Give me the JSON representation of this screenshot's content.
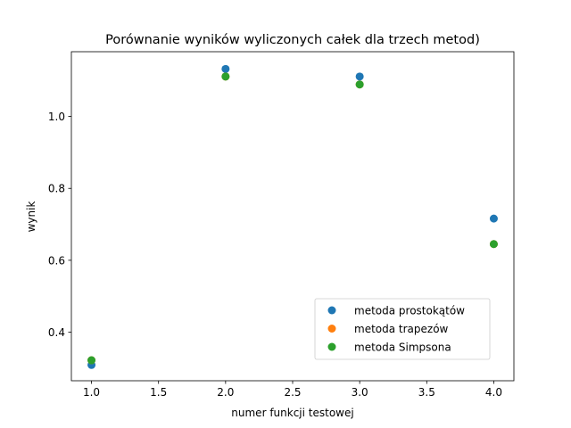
{
  "chart_data": {
    "type": "scatter",
    "title": "Porównanie wyników wyliczonych całek dla trzech metod)",
    "xlabel": "numer funkcji testowej",
    "ylabel": "wynik",
    "xlim": [
      0.85,
      4.15
    ],
    "ylim": [
      0.265,
      1.18
    ],
    "xticks": [
      1.0,
      1.5,
      2.0,
      2.5,
      3.0,
      3.5,
      4.0
    ],
    "xtick_labels": [
      "1.0",
      "1.5",
      "2.0",
      "2.5",
      "3.0",
      "3.5",
      "4.0"
    ],
    "yticks": [
      0.4,
      0.6,
      0.8,
      1.0
    ],
    "ytick_labels": [
      "0.4",
      "0.6",
      "0.8",
      "1.0"
    ],
    "grid": false,
    "legend_position": "lower-right",
    "series": [
      {
        "name": "metoda prostokątów",
        "color": "#1f77b4",
        "x": [
          1,
          2,
          3,
          4
        ],
        "y": [
          0.309,
          1.132,
          1.111,
          0.716
        ]
      },
      {
        "name": "metoda trapezów",
        "color": "#ff7f0e",
        "x": [
          1,
          2,
          3,
          4
        ],
        "y": [
          0.322,
          1.111,
          1.089,
          0.645
        ]
      },
      {
        "name": "metoda Simpsona",
        "color": "#2ca02c",
        "x": [
          1,
          2,
          3,
          4
        ],
        "y": [
          0.322,
          1.111,
          1.089,
          0.645
        ]
      }
    ]
  }
}
